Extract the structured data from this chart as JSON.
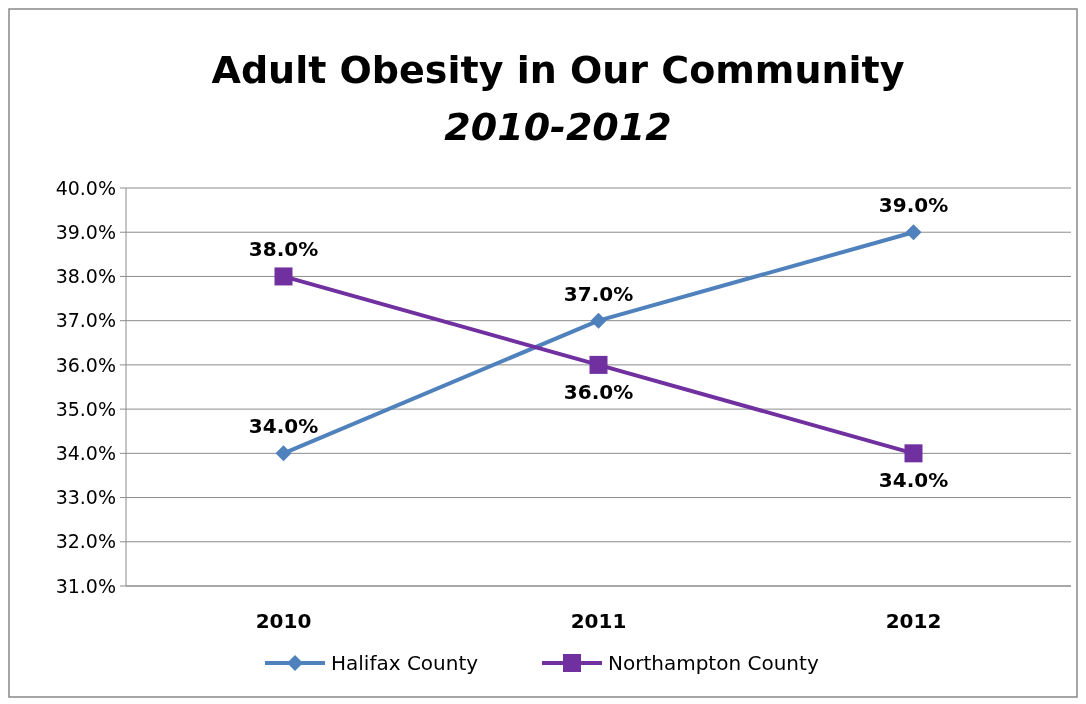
{
  "chart_data": {
    "type": "line",
    "title": "Adult Obesity in Our Community",
    "subtitle": "2010-2012",
    "categories": [
      "2010",
      "2011",
      "2012"
    ],
    "series": [
      {
        "name": "Halifax County",
        "color": "#4f81bd",
        "marker": "diamond",
        "values": [
          34,
          37,
          39
        ],
        "value_labels": [
          "34.0%",
          "37.0%",
          "39.0%"
        ]
      },
      {
        "name": "Northampton County",
        "color": "#7030a0",
        "marker": "square",
        "values": [
          38,
          36,
          34
        ],
        "value_labels": [
          "38.0%",
          "36.0%",
          "34.0%"
        ]
      }
    ],
    "ylim": [
      31,
      40
    ],
    "yticks": [
      {
        "value": 31,
        "label": "31.0%"
      },
      {
        "value": 32,
        "label": "32.0%"
      },
      {
        "value": 33,
        "label": "33.0%"
      },
      {
        "value": 34,
        "label": "34.0%"
      },
      {
        "value": 35,
        "label": "35.0%"
      },
      {
        "value": 36,
        "label": "36.0%"
      },
      {
        "value": 37,
        "label": "37.0%"
      },
      {
        "value": 38,
        "label": "38.0%"
      },
      {
        "value": 39,
        "label": "39.0%"
      },
      {
        "value": 40,
        "label": "40.0%"
      }
    ],
    "grid": "y",
    "legend": "bottom"
  }
}
